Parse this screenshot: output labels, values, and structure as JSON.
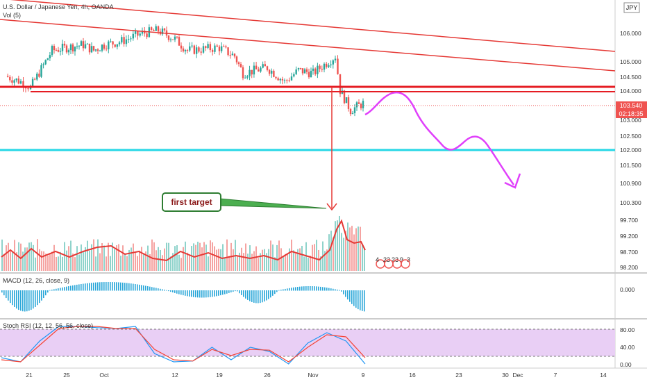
{
  "header": {
    "symbol_title": "U.S. Dollar / Japanese Yen, 4h, OANDA",
    "volume_label": "Vol (5)",
    "currency_badge": "JPY"
  },
  "colors": {
    "up": "#26a69a",
    "down": "#ef5350",
    "trendline": "#e53935",
    "support": "#e51c23",
    "target_line": "#26d7e6",
    "projection": "#e040fb",
    "arrow": "#e53935",
    "annotation_border": "#2e7d32",
    "annotation_text": "#8b1a1a",
    "macd_hist": "#29a6d8",
    "stoch_k": "#2196f3",
    "stoch_d": "#f44336",
    "stoch_band": "#e9cff5"
  },
  "chart_data": [
    {
      "type": "candlestick",
      "title": "U.S. Dollar / Japanese Yen, 4h, OANDA",
      "y_ticks": [
        "106.000",
        "105.000",
        "104.500",
        "104.000",
        "103.000",
        "102.500",
        "102.000",
        "101.500",
        "100.900",
        "100.300",
        "99.700",
        "99.200",
        "98.700",
        "98.200"
      ],
      "current_price": "103.540",
      "countdown": "02:18:35",
      "x_ticks": [
        "21",
        "25",
        "Oct",
        "12",
        "19",
        "26",
        "Nov",
        "9",
        "16",
        "23",
        "30",
        "Dec",
        "7",
        "14"
      ],
      "close_path": [
        {
          "x": "21",
          "y": 104.5
        },
        {
          "x": "21.5",
          "y": 104.3
        },
        {
          "x": "22",
          "y": 104.1
        },
        {
          "x": "23",
          "y": 105.4
        },
        {
          "x": "25",
          "y": 105.5
        },
        {
          "x": "28",
          "y": 105.6
        },
        {
          "x": "30",
          "y": 105.4
        },
        {
          "x": "Oct",
          "y": 105.6
        },
        {
          "x": "Oct 5",
          "y": 105.7
        },
        {
          "x": "Oct 8",
          "y": 106.0
        },
        {
          "x": "Oct 10",
          "y": 106.1
        },
        {
          "x": "12",
          "y": 105.8
        },
        {
          "x": "Oct 14",
          "y": 105.4
        },
        {
          "x": "19",
          "y": 105.5
        },
        {
          "x": "21",
          "y": 105.2
        },
        {
          "x": "22",
          "y": 104.6
        },
        {
          "x": "26",
          "y": 104.8
        },
        {
          "x": "28",
          "y": 104.3
        },
        {
          "x": "30",
          "y": 104.7
        },
        {
          "x": "Nov",
          "y": 104.6
        },
        {
          "x": "Nov 4",
          "y": 105.2
        },
        {
          "x": "Nov 5",
          "y": 104.0
        },
        {
          "x": "Nov 6",
          "y": 103.3
        },
        {
          "x": "9",
          "y": 103.54
        }
      ],
      "annotations": {
        "first_target_label": "first target",
        "levels": [
          {
            "name": "support-1",
            "value": 104.2
          },
          {
            "name": "support-2",
            "value": 104.0
          },
          {
            "name": "first-target",
            "value": 102.0
          }
        ]
      }
    },
    {
      "type": "bar",
      "title": "Vol (5)",
      "legend_values": [
        "4",
        "23",
        "23",
        "9",
        "3"
      ]
    },
    {
      "type": "bar",
      "title": "MACD (12, 26, close, 9)",
      "y_ticks": [
        "0.000"
      ]
    },
    {
      "type": "line",
      "title": "Stoch RSI (12, 12, 56, 56, close)",
      "y_ticks": [
        "80.00",
        "40.00",
        "0.00"
      ],
      "ylim": [
        0,
        100
      ],
      "series": [
        {
          "values": [
            20,
            10,
            60,
            95,
            95,
            92,
            90,
            95,
            30,
            10,
            12,
            45,
            15,
            45,
            35,
            5,
            55,
            80,
            60,
            5
          ]
        },
        {
          "values": [
            15,
            10,
            50,
            90,
            95,
            95,
            90,
            90,
            40,
            15,
            12,
            40,
            25,
            40,
            38,
            10,
            45,
            75,
            70,
            20
          ]
        }
      ]
    }
  ]
}
